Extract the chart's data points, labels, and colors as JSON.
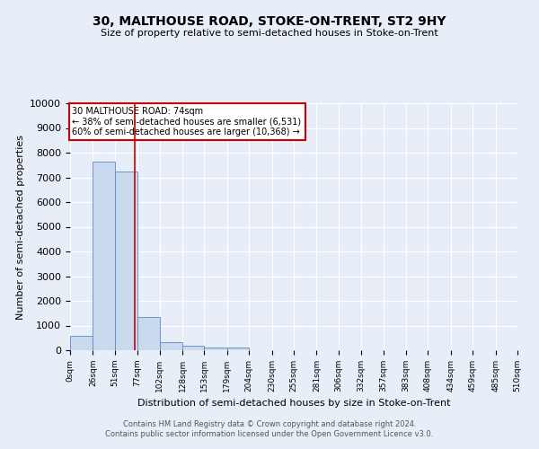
{
  "title": "30, MALTHOUSE ROAD, STOKE-ON-TRENT, ST2 9HY",
  "subtitle": "Size of property relative to semi-detached houses in Stoke-on-Trent",
  "xlabel": "Distribution of semi-detached houses by size in Stoke-on-Trent",
  "ylabel": "Number of semi-detached properties",
  "footer1": "Contains HM Land Registry data © Crown copyright and database right 2024.",
  "footer2": "Contains public sector information licensed under the Open Government Licence v3.0.",
  "bin_edges": [
    0,
    26,
    51,
    77,
    102,
    128,
    153,
    179,
    204,
    230,
    255,
    281,
    306,
    332,
    357,
    383,
    408,
    434,
    459,
    485,
    510
  ],
  "bar_heights": [
    600,
    7650,
    7250,
    1350,
    320,
    175,
    125,
    100,
    0,
    0,
    0,
    0,
    0,
    0,
    0,
    0,
    0,
    0,
    0,
    0
  ],
  "bar_color": "#c9d9ee",
  "bar_edge_color": "#5b8ac4",
  "property_line_x": 74,
  "annotation_title": "30 MALTHOUSE ROAD: 74sqm",
  "annotation_line1": "← 38% of semi-detached houses are smaller (6,531)",
  "annotation_line2": "60% of semi-detached houses are larger (10,368) →",
  "annotation_box_color": "#ffffff",
  "annotation_box_edge": "#cc0000",
  "property_line_color": "#cc0000",
  "ylim": [
    0,
    10000
  ],
  "yticks": [
    0,
    1000,
    2000,
    3000,
    4000,
    5000,
    6000,
    7000,
    8000,
    9000,
    10000
  ],
  "tick_labels": [
    "0sqm",
    "26sqm",
    "51sqm",
    "77sqm",
    "102sqm",
    "128sqm",
    "153sqm",
    "179sqm",
    "204sqm",
    "230sqm",
    "255sqm",
    "281sqm",
    "306sqm",
    "332sqm",
    "357sqm",
    "383sqm",
    "408sqm",
    "434sqm",
    "459sqm",
    "485sqm",
    "510sqm"
  ],
  "background_color": "#e8eef8",
  "grid_color": "#ffffff",
  "title_fontsize": 10,
  "subtitle_fontsize": 8,
  "ylabel_fontsize": 8,
  "xlabel_fontsize": 8,
  "footer_fontsize": 6,
  "annot_fontsize": 7,
  "ytick_fontsize": 8,
  "xtick_fontsize": 6.5
}
